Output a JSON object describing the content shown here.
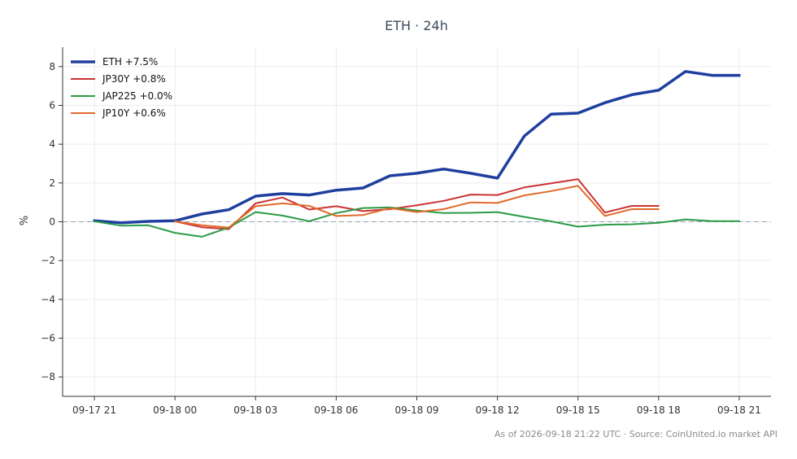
{
  "chart_data": {
    "type": "line",
    "title": "ETH · 24h",
    "xlabel": "",
    "ylabel": "%",
    "ylim": [
      -9,
      9
    ],
    "yticks": [
      -8,
      -6,
      -4,
      -2,
      0,
      2,
      4,
      6,
      8
    ],
    "ytick_labels": [
      "−8",
      "−6",
      "−4",
      "−2",
      "0",
      "2",
      "4",
      "6",
      "8"
    ],
    "xlim": [
      "09-17 20:00",
      "09-18 22:00"
    ],
    "xtick_labels": [
      "09-17 21",
      "09-18 00",
      "09-18 03",
      "09-18 06",
      "09-18 09",
      "09-18 12",
      "09-18 15",
      "09-18 18",
      "09-18 21"
    ],
    "x": [
      "09-17 21:00",
      "09-17 22:00",
      "09-17 23:00",
      "09-18 00:00",
      "09-18 01:00",
      "09-18 02:00",
      "09-18 03:00",
      "09-18 04:00",
      "09-18 05:00",
      "09-18 06:00",
      "09-18 07:00",
      "09-18 08:00",
      "09-18 09:00",
      "09-18 10:00",
      "09-18 11:00",
      "09-18 12:00",
      "09-18 13:00",
      "09-18 14:00",
      "09-18 15:00",
      "09-18 16:00",
      "09-18 17:00",
      "09-18 18:00",
      "09-18 19:00",
      "09-18 20:00",
      "09-18 21:00"
    ],
    "grid": true,
    "zero_line": true,
    "legend_position": "top-left",
    "series": [
      {
        "name": "ETH +7.5%",
        "color": "#1f3f9e",
        "values": [
          0.05,
          -0.05,
          0.02,
          0.05,
          0.4,
          0.62,
          1.32,
          1.45,
          1.38,
          1.63,
          1.74,
          2.37,
          2.5,
          2.72,
          2.5,
          2.25,
          4.42,
          5.55,
          5.6,
          6.14,
          6.55,
          6.78,
          7.75,
          7.55,
          7.55
        ]
      },
      {
        "name": "JP30Y +0.8%",
        "color": "#cc3333",
        "values": [
          null,
          null,
          null,
          0.02,
          -0.28,
          -0.38,
          0.95,
          1.25,
          0.63,
          0.8,
          0.55,
          0.65,
          0.85,
          1.08,
          1.4,
          1.38,
          1.77,
          1.98,
          2.2,
          0.48,
          0.82,
          0.82,
          null,
          null,
          null
        ]
      },
      {
        "name": "JAP225 +0.0%",
        "color": "#2a9b46",
        "values": [
          0.02,
          -0.2,
          -0.18,
          -0.57,
          -0.77,
          -0.3,
          0.5,
          0.32,
          0.03,
          0.45,
          0.71,
          0.74,
          0.58,
          0.45,
          0.46,
          0.5,
          0.25,
          0.02,
          -0.25,
          -0.15,
          -0.13,
          -0.05,
          0.12,
          0.03,
          0.03
        ]
      },
      {
        "name": "JP10Y +0.6%",
        "color": "#e06a2b",
        "values": [
          null,
          null,
          null,
          0.02,
          -0.18,
          -0.3,
          0.8,
          0.95,
          0.82,
          0.3,
          0.35,
          0.7,
          0.5,
          0.65,
          1.0,
          0.97,
          1.36,
          1.58,
          1.85,
          0.3,
          0.65,
          0.65,
          null,
          null,
          null
        ]
      }
    ]
  },
  "footer": {
    "source": "As of 2026-09-18 21:22 UTC · Source: CoinUnited.io market API"
  }
}
